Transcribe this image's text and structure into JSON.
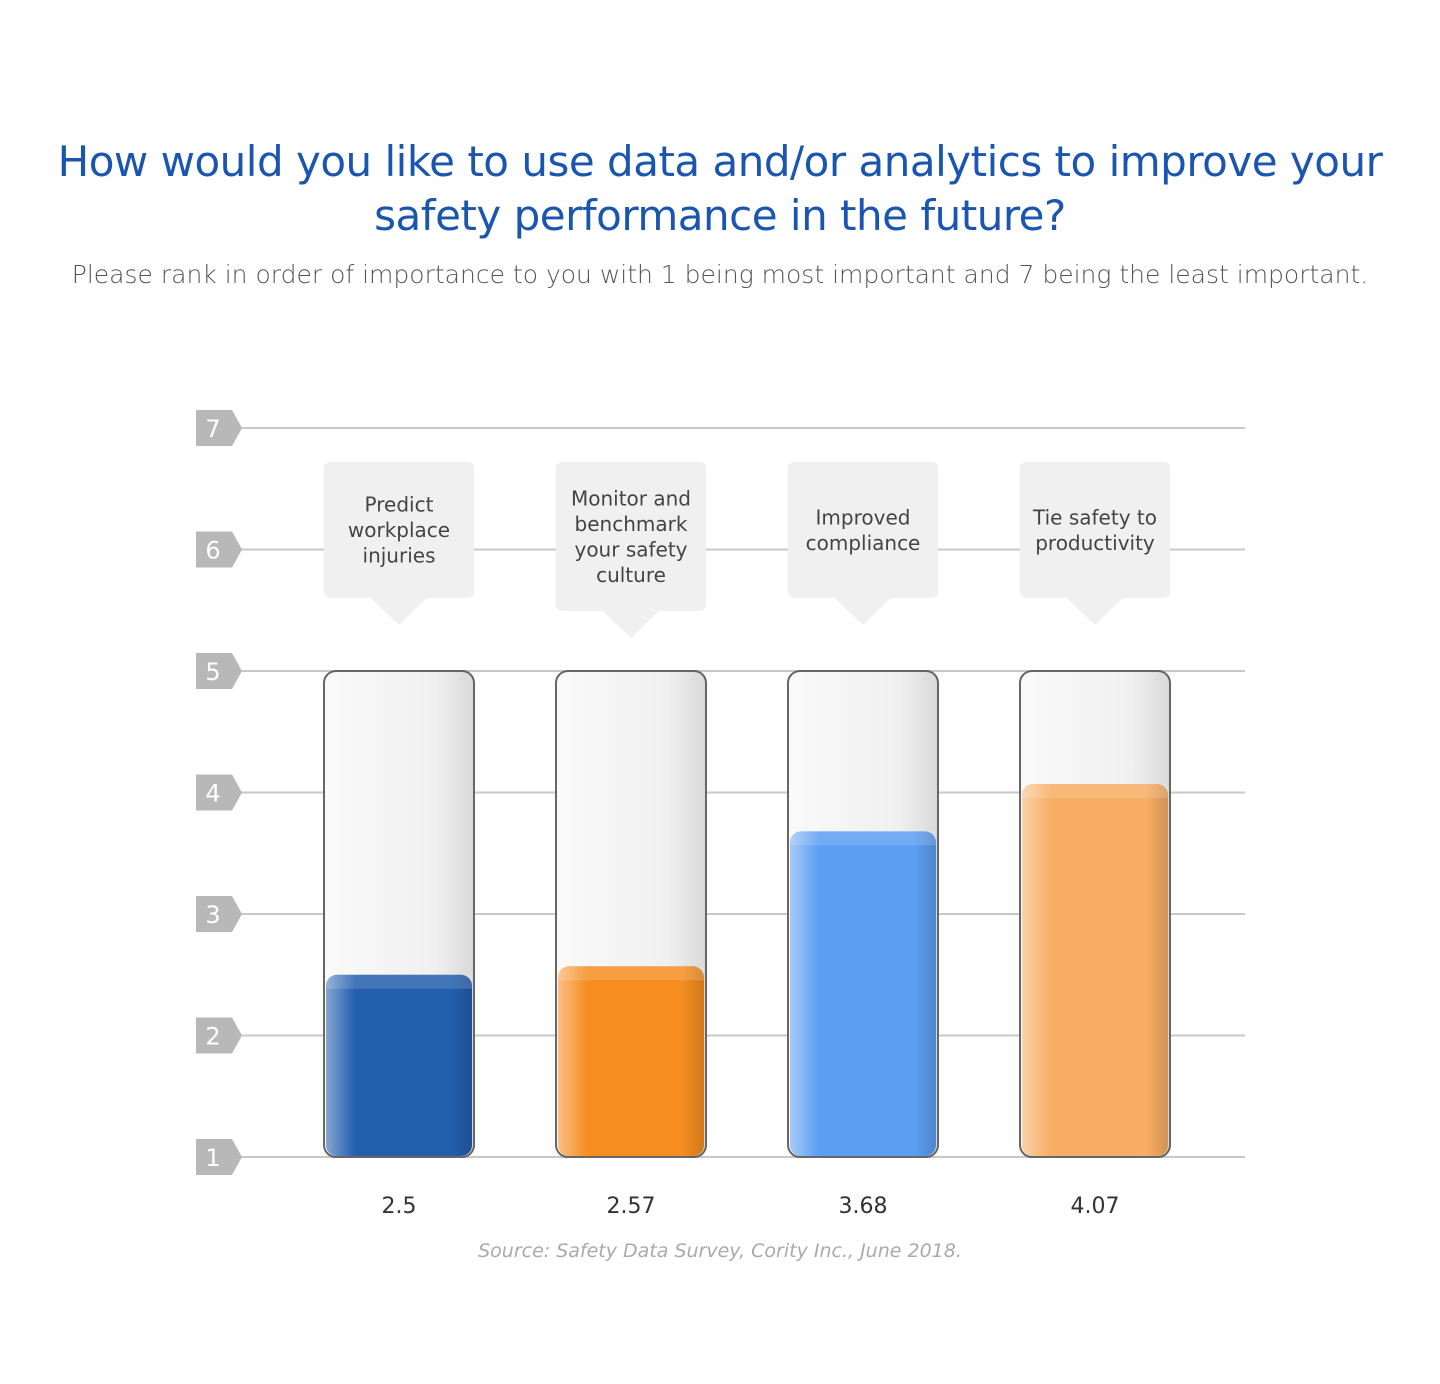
{
  "chart_data": {
    "type": "bar",
    "title": "How would you like to use data and/or analytics to improve your safety performance in the future?",
    "subtitle": "Please rank in order of importance to you with 1 being most important and 7 being the least important.",
    "source": "Source: Safety Data Survey, Cority Inc., June 2018.",
    "categories": [
      [
        "Predict",
        "workplace",
        "injuries"
      ],
      [
        "Monitor and",
        "benchmark",
        "your safety",
        "culture"
      ],
      [
        "Improved",
        "compliance"
      ],
      [
        "Tie safety to",
        "productivity"
      ]
    ],
    "values": [
      2.5,
      2.57,
      3.68,
      4.07
    ],
    "value_labels": [
      "2.5",
      "2.57",
      "3.68",
      "4.07"
    ],
    "colors": [
      "#235ead",
      "#f58d20",
      "#5b9ef2",
      "#f7ad63"
    ],
    "ylim": [
      1,
      7
    ],
    "yticks": [
      "1",
      "2",
      "3",
      "4",
      "5",
      "6",
      "7"
    ],
    "bar_max": 5,
    "grid": true
  }
}
